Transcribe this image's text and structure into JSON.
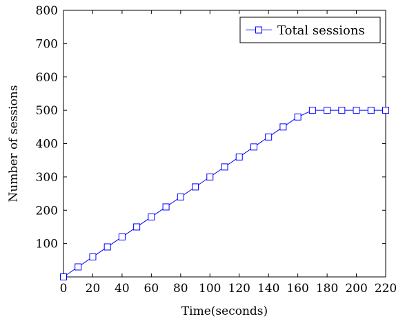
{
  "chart_data": {
    "type": "line",
    "xlabel": "Time(seconds)",
    "ylabel": "Number of sessions",
    "xlim": [
      0,
      220
    ],
    "ylim": [
      0,
      800
    ],
    "xticks": [
      0,
      20,
      40,
      60,
      80,
      100,
      120,
      140,
      160,
      180,
      200,
      220
    ],
    "yticks": [
      100,
      200,
      300,
      400,
      500,
      600,
      700,
      800
    ],
    "grid": false,
    "legend_position": "top-right",
    "series": [
      {
        "name": "Total sessions",
        "color": "#0000ff",
        "marker": "square",
        "x": [
          0,
          10,
          20,
          30,
          40,
          50,
          60,
          70,
          80,
          90,
          100,
          110,
          120,
          130,
          140,
          150,
          160,
          170,
          180,
          190,
          200,
          210,
          220
        ],
        "y": [
          0,
          30,
          60,
          90,
          120,
          150,
          180,
          210,
          240,
          270,
          300,
          330,
          360,
          390,
          420,
          450,
          480,
          500,
          500,
          500,
          500,
          500,
          500
        ]
      }
    ]
  }
}
